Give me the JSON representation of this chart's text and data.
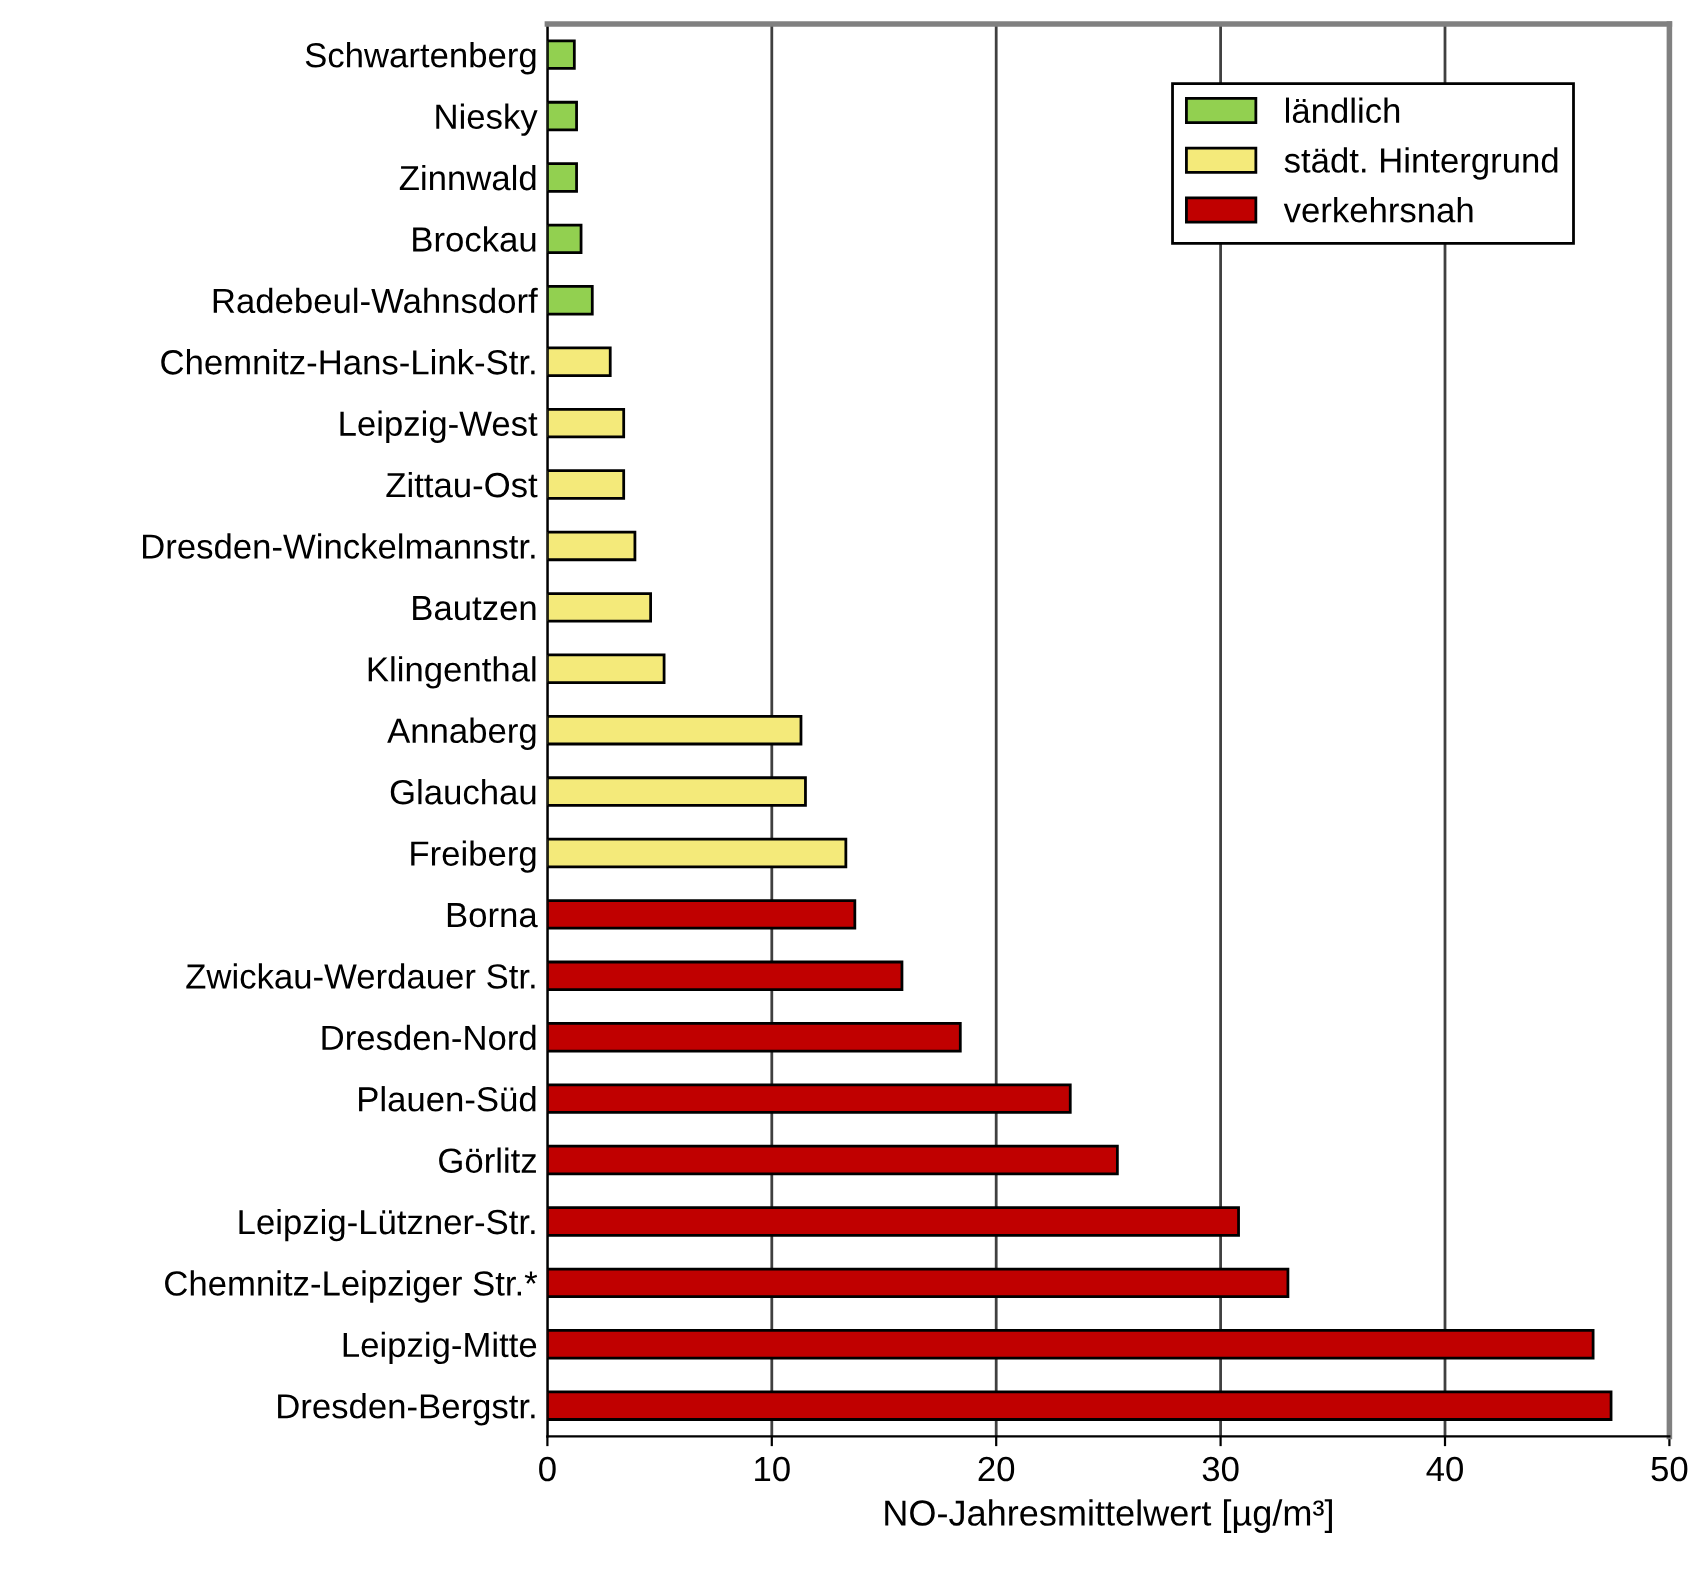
{
  "chart_data": {
    "type": "bar",
    "orientation": "horizontal",
    "xlabel": "NO-Jahresmittelwert [µg/m³]",
    "categories": [
      "Schwartenberg",
      "Niesky",
      "Zinnwald",
      "Brockau",
      "Radebeul-Wahnsdorf",
      "Chemnitz-Hans-Link-Str.",
      "Leipzig-West",
      "Zittau-Ost",
      "Dresden-Winckelmannstr.",
      "Bautzen",
      "Klingenthal",
      "Annaberg",
      "Glauchau",
      "Freiberg",
      "Borna",
      "Zwickau-Werdauer Str.",
      "Dresden-Nord",
      "Plauen-Süd",
      "Görlitz",
      "Leipzig-Lützner-Str.",
      "Chemnitz-Leipziger Str.*",
      "Leipzig-Mitte",
      "Dresden-Bergstr."
    ],
    "series": [
      {
        "name": "ländlich",
        "color": "#92d050",
        "values": [
          1.2,
          1.3,
          1.3,
          1.5,
          2.0,
          null,
          null,
          null,
          null,
          null,
          null,
          null,
          null,
          null,
          null,
          null,
          null,
          null,
          null,
          null,
          null,
          null,
          null
        ]
      },
      {
        "name": "städt. Hintergrund",
        "color": "#f4ea7a",
        "values": [
          null,
          null,
          null,
          null,
          null,
          2.8,
          3.4,
          3.4,
          3.9,
          4.6,
          5.2,
          11.3,
          11.5,
          13.3,
          null,
          null,
          null,
          null,
          null,
          null,
          null,
          null,
          null
        ]
      },
      {
        "name": "verkehrsnah",
        "color": "#c00000",
        "values": [
          null,
          null,
          null,
          null,
          null,
          null,
          null,
          null,
          null,
          null,
          null,
          null,
          null,
          null,
          13.7,
          15.8,
          18.4,
          23.3,
          25.4,
          30.8,
          33.0,
          46.6,
          47.4
        ]
      }
    ],
    "xlim": [
      0,
      50
    ],
    "xticks": [
      0,
      10,
      20,
      30,
      40,
      50
    ],
    "grid": "x",
    "legend": "top right"
  }
}
